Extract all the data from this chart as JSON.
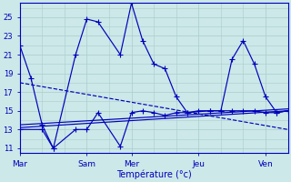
{
  "background_color": "#cce8e8",
  "grid_color": "#aacccc",
  "line_color": "#0000bb",
  "xlabel": "Température (°c)",
  "xlabel_fontsize": 7,
  "yticks": [
    11,
    13,
    15,
    17,
    19,
    21,
    23,
    25
  ],
  "xtick_labels": [
    "Mar",
    "Sam",
    "Mer",
    "Jeu",
    "Ven"
  ],
  "xtick_positions": [
    0,
    3,
    5,
    8,
    11
  ],
  "xmax": 12,
  "ymin": 10.5,
  "ymax": 26.5,
  "line1_x": [
    0,
    0.5,
    1.0,
    1.5,
    2.5,
    3.0,
    3.5,
    4.5,
    5.0,
    5.5,
    6.0,
    6.5,
    7.0,
    7.5,
    8.5,
    9.0,
    9.5,
    10.0,
    10.5,
    11.0,
    11.5,
    12.0
  ],
  "line1_y": [
    22.0,
    18.5,
    13.5,
    11.0,
    21.0,
    24.8,
    24.5,
    21.0,
    26.5,
    22.5,
    20.0,
    19.5,
    16.5,
    14.8,
    15.0,
    15.0,
    20.5,
    22.5,
    20.0,
    16.5,
    14.8,
    15.0
  ],
  "line2_x": [
    0,
    1.0,
    1.5,
    2.5,
    3.0,
    3.5,
    4.5,
    5.0,
    5.5,
    6.0,
    6.5,
    7.0,
    7.5,
    8.0,
    8.5,
    9.0,
    9.5,
    10.0,
    10.5,
    11.0,
    11.5,
    12.0
  ],
  "line2_y": [
    13.0,
    13.0,
    11.0,
    13.0,
    13.0,
    14.8,
    11.2,
    14.8,
    15.0,
    14.8,
    14.5,
    14.8,
    14.8,
    15.0,
    15.0,
    15.0,
    15.0,
    15.0,
    15.0,
    14.8,
    14.8,
    15.0
  ],
  "line3_x": [
    0,
    12
  ],
  "line3_y": [
    18.0,
    13.0
  ],
  "line4_x": [
    0,
    12
  ],
  "line4_y": [
    13.2,
    15.0
  ],
  "line5_x": [
    0,
    12
  ],
  "line5_y": [
    13.5,
    15.2
  ]
}
